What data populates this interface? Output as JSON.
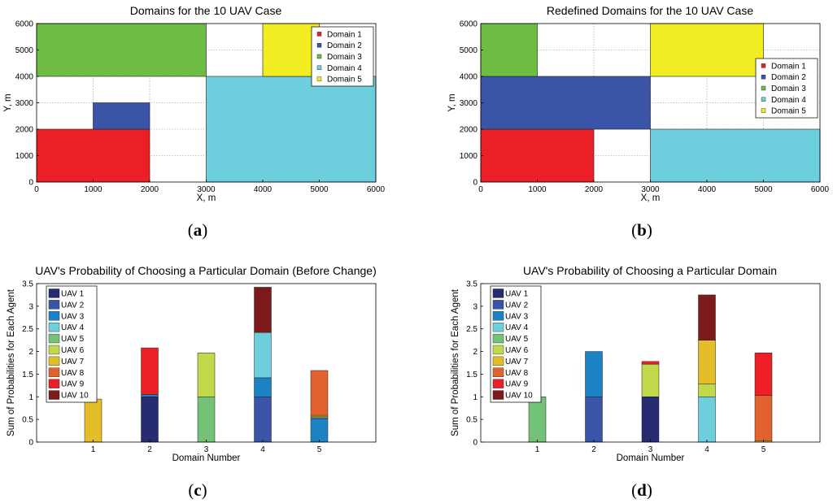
{
  "colors": {
    "uav": [
      "#262b72",
      "#3a55a7",
      "#1b82c3",
      "#6dcfdd",
      "#74c277",
      "#c1d84b",
      "#e4be28",
      "#e1622e",
      "#ec1e26",
      "#7e1a1c"
    ],
    "domain": [
      "#ec1f27",
      "#3a55a7",
      "#6dbd45",
      "#6dcfdd",
      "#f2ec23"
    ]
  },
  "chart_data": [
    {
      "type": "map",
      "panel": "a",
      "caption_letter": "a",
      "title": "Domains for the 10 UAV Case",
      "xlabel": "X, m",
      "ylabel": "Y, m",
      "xlim": [
        0,
        6000
      ],
      "ylim": [
        0,
        6000
      ],
      "xticks": [
        0,
        1000,
        2000,
        3000,
        4000,
        5000,
        6000
      ],
      "yticks": [
        0,
        1000,
        2000,
        3000,
        4000,
        5000,
        6000
      ],
      "grid": true,
      "legend": {
        "position": "top-right",
        "entries": [
          "Domain 1",
          "Domain 2",
          "Domain 3",
          "Domain 4",
          "Domain 5"
        ]
      },
      "regions": [
        {
          "domain": 1,
          "x0": 0,
          "x1": 2000,
          "y0": 0,
          "y1": 2000
        },
        {
          "domain": 2,
          "x0": 1000,
          "x1": 2000,
          "y0": 2000,
          "y1": 3000
        },
        {
          "domain": 3,
          "x0": 0,
          "x1": 3000,
          "y0": 4000,
          "y1": 6000
        },
        {
          "domain": 4,
          "x0": 3000,
          "x1": 6000,
          "y0": 0,
          "y1": 4000
        },
        {
          "domain": 5,
          "x0": 4000,
          "x1": 5000,
          "y0": 4000,
          "y1": 6000
        }
      ]
    },
    {
      "type": "map",
      "panel": "b",
      "caption_letter": "b",
      "title": "Redefined Domains for the 10 UAV Case",
      "xlabel": "X, m",
      "ylabel": "Y, m",
      "xlim": [
        0,
        6000
      ],
      "ylim": [
        0,
        6000
      ],
      "xticks": [
        0,
        1000,
        2000,
        3000,
        4000,
        5000,
        6000
      ],
      "yticks": [
        0,
        1000,
        2000,
        3000,
        4000,
        5000,
        6000
      ],
      "grid": true,
      "legend": {
        "position": "right",
        "entries": [
          "Domain 1",
          "Domain 2",
          "Domain 3",
          "Domain 4",
          "Domain 5"
        ]
      },
      "regions": [
        {
          "domain": 1,
          "x0": 0,
          "x1": 2000,
          "y0": 0,
          "y1": 2000
        },
        {
          "domain": 2,
          "x0": 0,
          "x1": 3000,
          "y0": 2000,
          "y1": 4000
        },
        {
          "domain": 3,
          "x0": 0,
          "x1": 1000,
          "y0": 4000,
          "y1": 6000
        },
        {
          "domain": 4,
          "x0": 3000,
          "x1": 6000,
          "y0": 0,
          "y1": 2000
        },
        {
          "domain": 5,
          "x0": 3000,
          "x1": 5000,
          "y0": 4000,
          "y1": 6000
        }
      ]
    },
    {
      "type": "bar",
      "stacked": true,
      "panel": "c",
      "caption_letter": "c",
      "title": "UAV's Probability of Choosing a Particular Domain (Before Change)",
      "xlabel": "Domain Number",
      "ylabel": "Sum of Probabilities for Each Agent",
      "categories": [
        "1",
        "2",
        "3",
        "4",
        "5"
      ],
      "xlim": [
        0,
        6
      ],
      "ylim": [
        0,
        3.5
      ],
      "yticks": [
        "0",
        "0.5",
        "1",
        "1.5",
        "2",
        "2.5",
        "3",
        "3.5"
      ],
      "legend": {
        "position": "top-left",
        "entries": [
          "UAV 1",
          "UAV 2",
          "UAV 3",
          "UAV 4",
          "UAV 5",
          "UAV 6",
          "UAV 7",
          "UAV 8",
          "UAV 9",
          "UAV 10"
        ]
      },
      "series": [
        {
          "name": "UAV 1",
          "values": [
            0,
            1.0,
            0,
            0,
            0
          ]
        },
        {
          "name": "UAV 2",
          "values": [
            0,
            0,
            0,
            1.0,
            0
          ]
        },
        {
          "name": "UAV 3",
          "values": [
            0,
            0.05,
            0,
            0.42,
            0.52
          ]
        },
        {
          "name": "UAV 4",
          "values": [
            0,
            0,
            0,
            1.0,
            0.02
          ]
        },
        {
          "name": "UAV 5",
          "values": [
            0,
            0,
            1.0,
            0,
            0
          ]
        },
        {
          "name": "UAV 6",
          "values": [
            0,
            0,
            0.97,
            0,
            0.02
          ]
        },
        {
          "name": "UAV 7",
          "values": [
            0.95,
            0,
            0,
            0,
            0.03
          ]
        },
        {
          "name": "UAV 8",
          "values": [
            0,
            0,
            0,
            0,
            0.99
          ]
        },
        {
          "name": "UAV 9",
          "values": [
            0,
            1.03,
            0,
            0,
            0
          ]
        },
        {
          "name": "UAV 10",
          "values": [
            0,
            0,
            0,
            1.0,
            0
          ]
        }
      ]
    },
    {
      "type": "bar",
      "stacked": true,
      "panel": "d",
      "caption_letter": "d",
      "title": "UAV's Probability of Choosing a Particular Domain",
      "xlabel": "Domain Number",
      "ylabel": "Sum of Probabilities for Each Agent",
      "categories": [
        "1",
        "2",
        "3",
        "4",
        "5"
      ],
      "xlim": [
        0,
        6
      ],
      "ylim": [
        0,
        3.5
      ],
      "yticks": [
        "0",
        "0.5",
        "1",
        "1.5",
        "2",
        "2.5",
        "3",
        "3.5"
      ],
      "legend": {
        "position": "top-left",
        "entries": [
          "UAV 1",
          "UAV 2",
          "UAV 3",
          "UAV 4",
          "UAV 5",
          "UAV 6",
          "UAV 7",
          "UAV 8",
          "UAV 9",
          "UAV 10"
        ]
      },
      "series": [
        {
          "name": "UAV 1",
          "values": [
            0,
            0,
            1.0,
            0,
            0
          ]
        },
        {
          "name": "UAV 2",
          "values": [
            0,
            1.0,
            0,
            0,
            0
          ]
        },
        {
          "name": "UAV 3",
          "values": [
            0,
            1.0,
            0,
            0,
            0
          ]
        },
        {
          "name": "UAV 4",
          "values": [
            0,
            0,
            0,
            1.0,
            0
          ]
        },
        {
          "name": "UAV 5",
          "values": [
            1.0,
            0,
            0,
            0,
            0
          ]
        },
        {
          "name": "UAV 6",
          "values": [
            0,
            0,
            0.72,
            0.28,
            0
          ]
        },
        {
          "name": "UAV 7",
          "values": [
            0,
            0,
            0,
            0.97,
            0.03
          ]
        },
        {
          "name": "UAV 8",
          "values": [
            0,
            0,
            0,
            0,
            1.0
          ]
        },
        {
          "name": "UAV 9",
          "values": [
            0,
            0,
            0.06,
            0,
            0.94
          ]
        },
        {
          "name": "UAV 10",
          "values": [
            0,
            0,
            0,
            1.0,
            0
          ]
        }
      ]
    }
  ]
}
